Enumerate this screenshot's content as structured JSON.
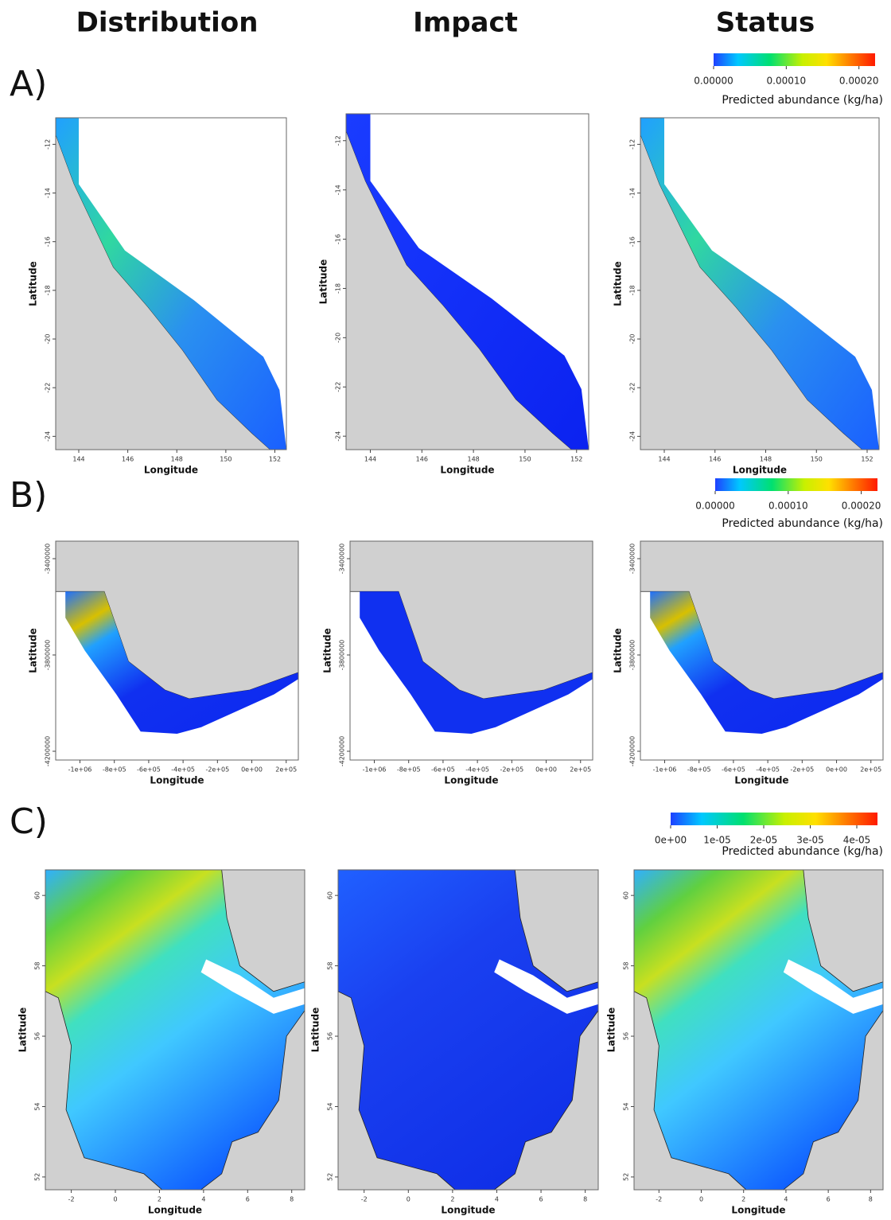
{
  "columns": [
    "Distribution",
    "Impact",
    "Status"
  ],
  "rows": [
    {
      "label": "A)",
      "legend": {
        "ticks": [
          "0.00000",
          "0.00010",
          "0.00020"
        ],
        "caption": "Predicted abundance (kg/ha)"
      },
      "x_axis_label": "Longitude",
      "y_axis_label": "Latitude",
      "x_ticks": [
        "144",
        "146",
        "148",
        "150",
        "152"
      ],
      "y_ticks": [
        "-12",
        "-14",
        "-16",
        "-18",
        "-20",
        "-22",
        "-24"
      ]
    },
    {
      "label": "B)",
      "legend": {
        "ticks": [
          "0.00000",
          "0.00010",
          "0.00020"
        ],
        "caption": "Predicted abundance (kg/ha)"
      },
      "x_axis_label": "Longitude",
      "y_axis_label": "Latitude",
      "x_ticks": [
        "-1e+06",
        "-8e+05",
        "-6e+05",
        "-4e+05",
        "-2e+05",
        "0e+00",
        "2e+05"
      ],
      "y_ticks": [
        "-3400000",
        "-3800000",
        "-4200000"
      ]
    },
    {
      "label": "C)",
      "legend": {
        "ticks": [
          "0e+00",
          "1e-05",
          "2e-05",
          "3e-05",
          "4e-05"
        ],
        "caption": "Predicted abundance (kg/ha)"
      },
      "x_axis_label": "Longitude",
      "y_axis_label": "Latitude",
      "x_ticks": [
        "-2",
        "0",
        "2",
        "4",
        "6",
        "8"
      ],
      "y_ticks": [
        "60",
        "58",
        "56",
        "54",
        "52"
      ]
    }
  ]
}
